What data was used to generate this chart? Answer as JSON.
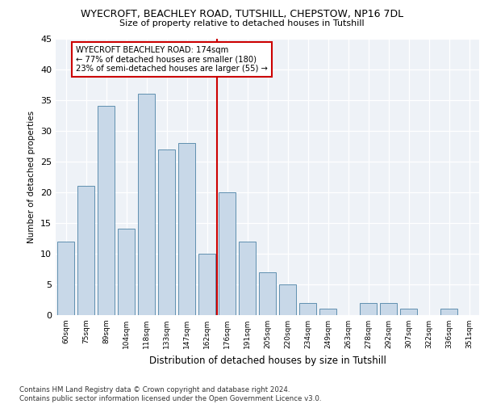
{
  "title1": "WYECROFT, BEACHLEY ROAD, TUTSHILL, CHEPSTOW, NP16 7DL",
  "title2": "Size of property relative to detached houses in Tutshill",
  "xlabel": "Distribution of detached houses by size in Tutshill",
  "ylabel": "Number of detached properties",
  "categories": [
    "60sqm",
    "75sqm",
    "89sqm",
    "104sqm",
    "118sqm",
    "133sqm",
    "147sqm",
    "162sqm",
    "176sqm",
    "191sqm",
    "205sqm",
    "220sqm",
    "234sqm",
    "249sqm",
    "263sqm",
    "278sqm",
    "292sqm",
    "307sqm",
    "322sqm",
    "336sqm",
    "351sqm"
  ],
  "values": [
    12,
    21,
    34,
    14,
    36,
    27,
    28,
    10,
    20,
    12,
    7,
    5,
    2,
    1,
    0,
    2,
    2,
    1,
    0,
    1,
    0
  ],
  "bar_color": "#c8d8e8",
  "bar_edge_color": "#6090b0",
  "vline_color": "#cc0000",
  "annotation_box_text": "WYECROFT BEACHLEY ROAD: 174sqm\n← 77% of detached houses are smaller (180)\n23% of semi-detached houses are larger (55) →",
  "annotation_box_color": "#cc0000",
  "ylim": [
    0,
    45
  ],
  "yticks": [
    0,
    5,
    10,
    15,
    20,
    25,
    30,
    35,
    40,
    45
  ],
  "bg_color": "#eef2f7",
  "grid_color": "#ffffff",
  "footer": "Contains HM Land Registry data © Crown copyright and database right 2024.\nContains public sector information licensed under the Open Government Licence v3.0."
}
